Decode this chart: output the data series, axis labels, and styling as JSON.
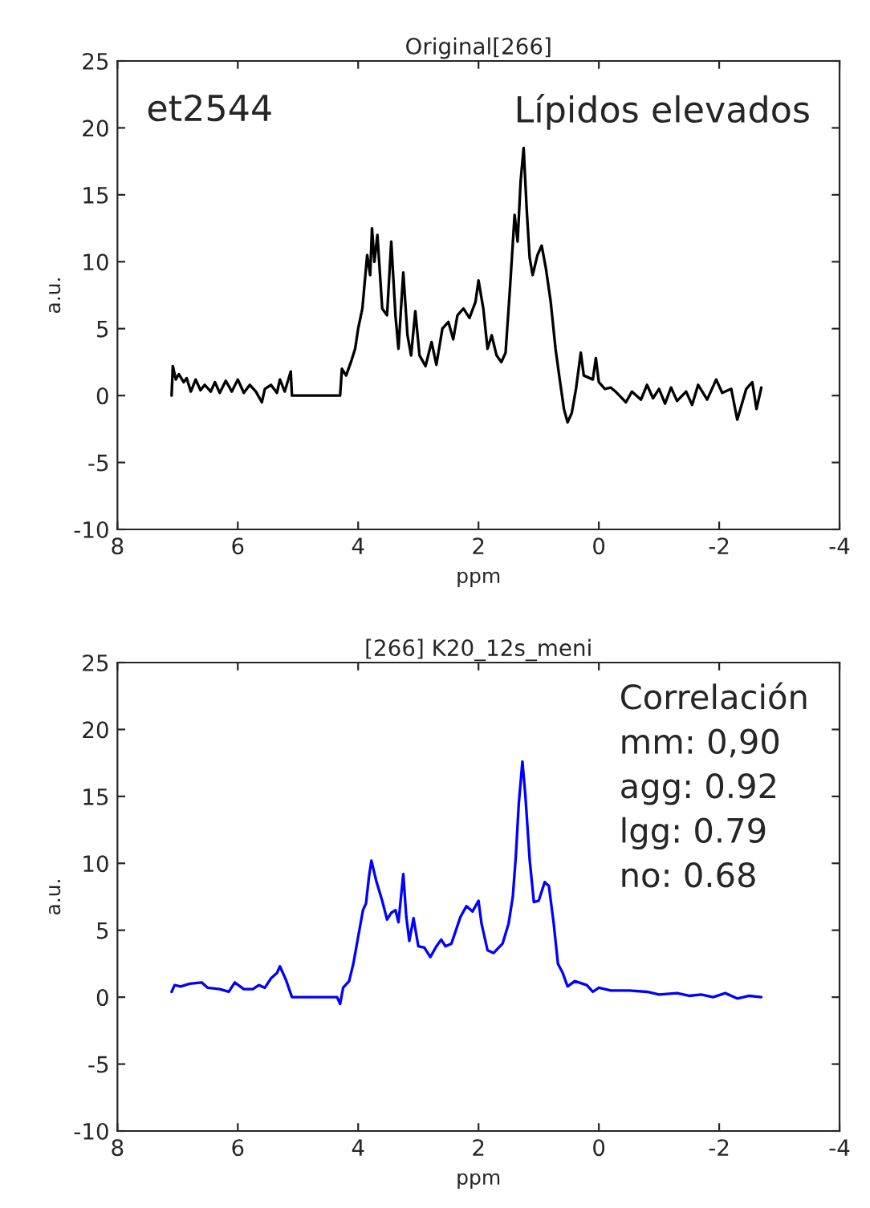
{
  "chart_data": [
    {
      "type": "line",
      "title": "Original[266]",
      "xlabel": "ppm",
      "ylabel": "a.u.",
      "xlim": [
        8,
        -4
      ],
      "ylim": [
        -10,
        25
      ],
      "xticks": [
        8,
        6,
        4,
        2,
        0,
        -2,
        -4
      ],
      "yticks": [
        -10,
        -5,
        0,
        5,
        10,
        15,
        20,
        25
      ],
      "grid": false,
      "annotations": [
        "et2544",
        "Lípidos elevados"
      ],
      "series": [
        {
          "color": "#000000",
          "x": [
            7.1,
            7.08,
            7.03,
            6.98,
            6.9,
            6.85,
            6.78,
            6.7,
            6.62,
            6.55,
            6.45,
            6.38,
            6.3,
            6.2,
            6.1,
            6.0,
            5.9,
            5.8,
            5.7,
            5.6,
            5.55,
            5.45,
            5.35,
            5.3,
            5.22,
            5.12,
            5.1,
            4.3,
            4.27,
            4.2,
            4.12,
            4.05,
            4.0,
            3.93,
            3.85,
            3.8,
            3.77,
            3.73,
            3.68,
            3.6,
            3.52,
            3.45,
            3.38,
            3.33,
            3.25,
            3.18,
            3.12,
            3.05,
            2.98,
            2.88,
            2.78,
            2.7,
            2.6,
            2.5,
            2.42,
            2.35,
            2.25,
            2.15,
            2.05,
            2.0,
            1.92,
            1.85,
            1.78,
            1.7,
            1.62,
            1.55,
            1.48,
            1.4,
            1.35,
            1.3,
            1.25,
            1.2,
            1.15,
            1.1,
            1.02,
            0.95,
            0.88,
            0.8,
            0.72,
            0.65,
            0.58,
            0.52,
            0.45,
            0.38,
            0.3,
            0.25,
            0.1,
            0.05,
            0.0,
            -0.1,
            -0.2,
            -0.3,
            -0.45,
            -0.55,
            -0.7,
            -0.8,
            -0.9,
            -1.0,
            -1.1,
            -1.2,
            -1.3,
            -1.45,
            -1.55,
            -1.65,
            -1.8,
            -1.95,
            -2.05,
            -2.2,
            -2.3,
            -2.45,
            -2.55,
            -2.62,
            -2.7
          ],
          "values": [
            0,
            2.2,
            1.2,
            1.6,
            1.0,
            1.3,
            0.3,
            1.2,
            0.4,
            0.8,
            0.3,
            1.0,
            0.2,
            1.1,
            0.3,
            1.2,
            0.2,
            0.8,
            0.3,
            -0.5,
            0.5,
            0.8,
            0.2,
            1.2,
            0.3,
            1.8,
            0,
            0,
            2.0,
            1.5,
            2.5,
            3.5,
            5.0,
            6.5,
            10.5,
            9.0,
            12.5,
            10.0,
            12.0,
            6.5,
            6.0,
            11.5,
            6.0,
            3.5,
            9.2,
            4.5,
            3.0,
            6.3,
            3.0,
            2.2,
            4.0,
            2.3,
            5.0,
            5.5,
            4.2,
            6.0,
            6.5,
            5.8,
            7.0,
            8.6,
            6.5,
            3.5,
            4.5,
            3.0,
            2.5,
            3.2,
            7.8,
            13.5,
            11.5,
            16.0,
            18.5,
            14.0,
            10.3,
            9.0,
            10.5,
            11.2,
            9.5,
            7.0,
            3.5,
            1.2,
            -1.0,
            -2.0,
            -1.3,
            0.5,
            3.2,
            1.5,
            1.2,
            2.8,
            1.0,
            0.5,
            0.6,
            0.2,
            -0.5,
            0.3,
            -0.3,
            0.8,
            -0.2,
            0.5,
            -0.6,
            0.6,
            -0.4,
            0.3,
            -0.7,
            0.8,
            -0.3,
            1.2,
            0.2,
            0.5,
            -1.8,
            0.5,
            1.0,
            -1.0,
            0.6
          ]
        }
      ]
    },
    {
      "type": "line",
      "title": "[266] K20_12s_meni",
      "xlabel": "ppm",
      "ylabel": "a.u.",
      "xlim": [
        8,
        -4
      ],
      "ylim": [
        -10,
        25
      ],
      "xticks": [
        8,
        6,
        4,
        2,
        0,
        -2,
        -4
      ],
      "yticks": [
        -10,
        -5,
        0,
        5,
        10,
        15,
        20,
        25
      ],
      "grid": false,
      "annotations": [
        "Correlación",
        "mm: 0,90",
        "agg: 0.92",
        "lgg: 0.79",
        "no: 0.68"
      ],
      "series": [
        {
          "color": "#0000ff",
          "x": [
            7.1,
            7.05,
            6.95,
            6.8,
            6.6,
            6.5,
            6.3,
            6.15,
            6.05,
            5.9,
            5.75,
            5.65,
            5.55,
            5.45,
            5.35,
            5.3,
            5.2,
            5.1,
            4.35,
            4.3,
            4.25,
            4.15,
            4.08,
            4.0,
            3.92,
            3.87,
            3.82,
            3.78,
            3.7,
            3.6,
            3.52,
            3.45,
            3.38,
            3.33,
            3.25,
            3.2,
            3.15,
            3.08,
            3.0,
            2.9,
            2.8,
            2.7,
            2.62,
            2.55,
            2.45,
            2.3,
            2.2,
            2.1,
            2.0,
            1.95,
            1.85,
            1.75,
            1.6,
            1.5,
            1.43,
            1.38,
            1.33,
            1.27,
            1.22,
            1.15,
            1.08,
            1.0,
            0.9,
            0.83,
            0.75,
            0.68,
            0.6,
            0.52,
            0.4,
            0.2,
            0.1,
            0.0,
            -0.2,
            -0.5,
            -0.8,
            -1.0,
            -1.3,
            -1.5,
            -1.7,
            -1.9,
            -2.1,
            -2.3,
            -2.5,
            -2.7
          ],
          "values": [
            0.4,
            0.9,
            0.8,
            1.0,
            1.1,
            0.7,
            0.6,
            0.4,
            1.1,
            0.6,
            0.6,
            0.9,
            0.7,
            1.4,
            1.8,
            2.3,
            1.3,
            0,
            0,
            -0.5,
            0.7,
            1.2,
            2.5,
            4.5,
            6.5,
            7.0,
            9.0,
            10.2,
            8.7,
            7.2,
            5.8,
            6.3,
            6.5,
            5.6,
            9.2,
            6.0,
            4.2,
            5.9,
            3.8,
            3.7,
            3.0,
            3.8,
            4.3,
            3.8,
            4.0,
            6.0,
            6.8,
            6.4,
            7.2,
            5.5,
            3.5,
            3.3,
            4.0,
            5.5,
            7.5,
            10.5,
            14.5,
            17.6,
            15.0,
            10.3,
            7.1,
            7.2,
            8.6,
            8.3,
            5.5,
            2.5,
            1.8,
            0.8,
            1.2,
            0.9,
            0.4,
            0.7,
            0.5,
            0.5,
            0.4,
            0.2,
            0.3,
            0.1,
            0.2,
            0.0,
            0.3,
            -0.1,
            0.1,
            0.0
          ]
        }
      ]
    }
  ]
}
